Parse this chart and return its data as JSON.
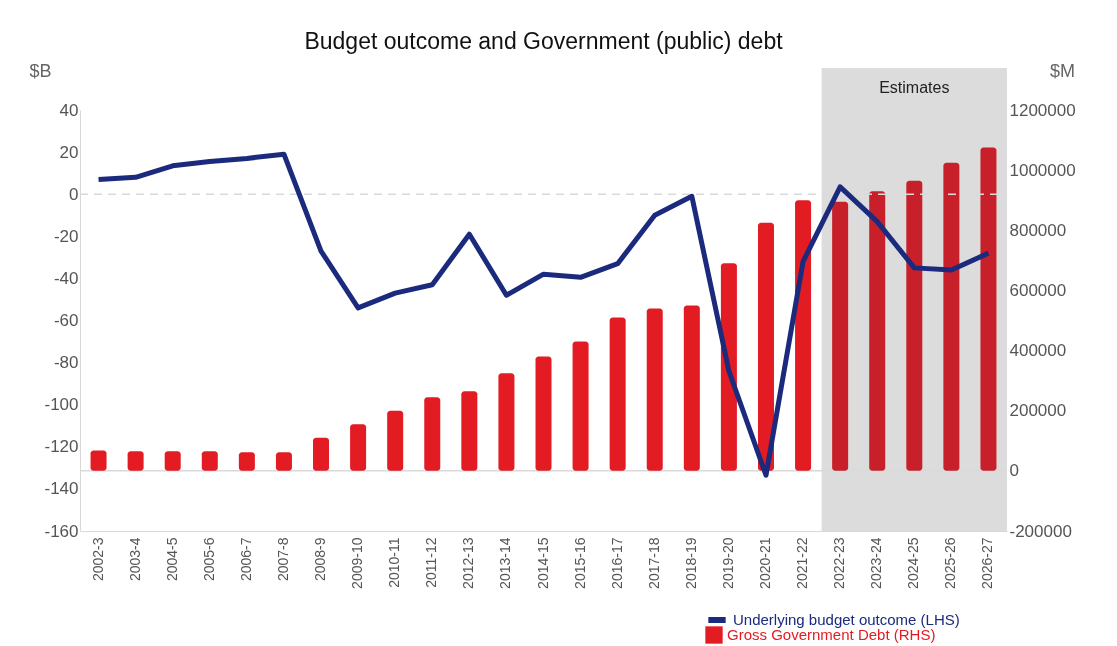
{
  "chart_data": {
    "type": "bar",
    "title": "Budget outcome and Government (public) debt",
    "ylabel": "$B",
    "y2label": "$M",
    "categories": [
      "2002-3",
      "2003-4",
      "2004-5",
      "2005-6",
      "2006-7",
      "2007-8",
      "2008-9",
      "2009-10",
      "2010-11",
      "2011-12",
      "2012-13",
      "2013-14",
      "2014-15",
      "2015-16",
      "2016-17",
      "2017-18",
      "2018-19",
      "2019-20",
      "2020-21",
      "2021-22",
      "2022-23",
      "2023-24",
      "2024-25",
      "2025-26",
      "2026-27"
    ],
    "series": [
      {
        "name": "Underlying budget outcome (LHS)",
        "type": "line",
        "color": "#1b2a7d",
        "values": [
          7,
          8,
          13.5,
          15.5,
          17,
          19,
          -27,
          -54,
          -47,
          -43,
          -19,
          -48,
          -38,
          -39.5,
          -33,
          -10,
          -1,
          -84,
          -133.5,
          -32,
          3.5,
          -13,
          -35,
          -36,
          -28
        ]
      },
      {
        "name": "Gross Government Debt (RHS)",
        "axis": "y2",
        "color": "#e31b23",
        "colors": [
          "#e31b23",
          "#e31b23",
          "#e31b23",
          "#e31b23",
          "#e31b23",
          "#e31b23",
          "#e31b23",
          "#e31b23",
          "#e31b23",
          "#e31b23",
          "#e31b23",
          "#e31b23",
          "#e31b23",
          "#e31b23",
          "#e31b23",
          "#e31b23",
          "#e31b23",
          "#e31b23",
          "#e31b23",
          "#e31b23",
          "#c8202a",
          "#c8202a",
          "#c8202a",
          "#c8202a",
          "#c8202a"
        ],
        "values": [
          68000,
          65000,
          65000,
          65000,
          62000,
          62000,
          110000,
          155000,
          200000,
          245000,
          265000,
          325000,
          380000,
          430000,
          510000,
          540000,
          550000,
          690000,
          825000,
          900000,
          895000,
          930000,
          965000,
          1025000,
          1075000
        ]
      }
    ],
    "ylim": [
      -160,
      40
    ],
    "yticks": [
      -160,
      -140,
      -120,
      -100,
      -80,
      -60,
      -40,
      -20,
      0,
      20,
      40
    ],
    "y2lim": [
      -200000,
      1200000
    ],
    "y2ticks": [
      -200000,
      0,
      200000,
      400000,
      600000,
      800000,
      1000000,
      1200000
    ],
    "ref_lines": [
      {
        "axis": "y",
        "value": 0,
        "line_style": "dashed",
        "color": "#d9d9d9"
      },
      {
        "axis": "y2",
        "value": 0,
        "line_style": "solid",
        "color": "#d9d9d9"
      }
    ],
    "bands": [
      {
        "axis": "x",
        "from": "2022-23",
        "to": "2026-27",
        "label": "Estimates",
        "color": "#dcdcdc"
      }
    ],
    "legend": "bottom right",
    "grid": false,
    "line_style": "solid",
    "marker": "none"
  }
}
